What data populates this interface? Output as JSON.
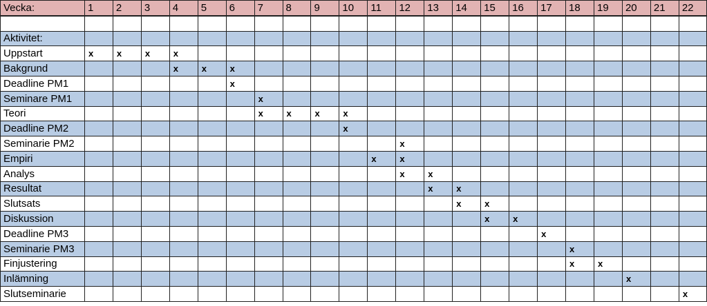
{
  "sheet": {
    "header_label": "Vecka:",
    "weeks": [
      "1",
      "2",
      "3",
      "4",
      "5",
      "6",
      "7",
      "8",
      "9",
      "10",
      "11",
      "12",
      "13",
      "14",
      "15",
      "16",
      "17",
      "18",
      "19",
      "20",
      "21",
      "22"
    ],
    "section_label": "Aktivitet:",
    "mark_symbol": "x",
    "colors": {
      "header": "#e2b3b3",
      "band": "#b8cce4",
      "plain": "#ffffff"
    },
    "activities": [
      {
        "name": "Uppstart",
        "weeks": [
          1,
          2,
          3,
          4
        ]
      },
      {
        "name": "Bakgrund",
        "weeks": [
          4,
          5,
          6
        ]
      },
      {
        "name": "Deadline PM1",
        "weeks": [
          6
        ]
      },
      {
        "name": "Seminare PM1",
        "weeks": [
          7
        ]
      },
      {
        "name": "Teori",
        "weeks": [
          7,
          8,
          9,
          10
        ]
      },
      {
        "name": "Deadline PM2",
        "weeks": [
          10
        ]
      },
      {
        "name": "Seminarie PM2",
        "weeks": [
          12
        ]
      },
      {
        "name": "Empiri",
        "weeks": [
          11,
          12
        ]
      },
      {
        "name": "Analys",
        "weeks": [
          12,
          13
        ]
      },
      {
        "name": "Resultat",
        "weeks": [
          13,
          14
        ]
      },
      {
        "name": "Slutsats",
        "weeks": [
          14,
          15
        ]
      },
      {
        "name": "Diskussion",
        "weeks": [
          15,
          16
        ]
      },
      {
        "name": "Deadline PM3",
        "weeks": [
          17
        ]
      },
      {
        "name": "Seminarie PM3",
        "weeks": [
          18
        ]
      },
      {
        "name": "Finjustering",
        "weeks": [
          18,
          19
        ]
      },
      {
        "name": "Inlämning",
        "weeks": [
          20
        ]
      },
      {
        "name": "Slutseminarie",
        "weeks": [
          22
        ]
      }
    ]
  }
}
